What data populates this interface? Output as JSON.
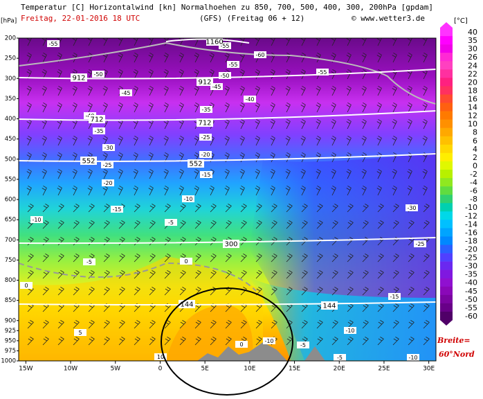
{
  "chart_data": {
    "type": "cross-section",
    "title": "Temperatur [C] Horizontalwind [kn] Normalhoehen zu 850, 700, 500, 400, 300, 200hPa [gpdam]",
    "date": "Freitag, 22-01-2016  18 UTC",
    "model": "(GFS)  (Freitag 06 + 12)",
    "credit": "© www.wetter3.de",
    "y_label": "[hPa]",
    "ylim": [
      1000,
      200
    ],
    "yticks": [
      200,
      250,
      300,
      350,
      400,
      450,
      500,
      550,
      600,
      650,
      700,
      750,
      800,
      850,
      900,
      925,
      950,
      975,
      1000
    ],
    "xlim": [
      -15.8,
      30.8
    ],
    "xticks": [
      {
        "value": -15,
        "label": "15W"
      },
      {
        "value": -10,
        "label": "10W"
      },
      {
        "value": -5,
        "label": "5W"
      },
      0,
      {
        "value": 5,
        "label": "5E"
      },
      {
        "value": 10,
        "label": "10E"
      },
      {
        "value": 15,
        "label": "15E"
      },
      {
        "value": 20,
        "label": "20E"
      },
      {
        "value": 25,
        "label": "25E"
      },
      {
        "value": 30,
        "label": "30E"
      }
    ],
    "colorbar_label": "[°C]",
    "colorbar": {
      "levels": [
        40,
        35,
        30,
        26,
        24,
        22,
        20,
        18,
        16,
        14,
        12,
        10,
        8,
        6,
        4,
        2,
        0,
        -2,
        -4,
        -6,
        -8,
        -10,
        -12,
        -14,
        -16,
        -18,
        -20,
        -25,
        -30,
        -35,
        -40,
        -45,
        -50,
        -55,
        -60
      ],
      "colors": [
        "#ff33ff",
        "#ff00ff",
        "#f000e8",
        "#ff2ad4",
        "#ff40c0",
        "#ff30a0",
        "#ff2080",
        "#ff3060",
        "#ff4a30",
        "#ff6010",
        "#ff7a00",
        "#ff9000",
        "#ffa800",
        "#ffc000",
        "#ffd800",
        "#ffee00",
        "#e0f800",
        "#b8f000",
        "#90e820",
        "#60dc40",
        "#30d070",
        "#00d0b0",
        "#00d8e8",
        "#00c0ff",
        "#00a4ff",
        "#0088ff",
        "#2a60ff",
        "#5040ff",
        "#6a28f0",
        "#8018e0",
        "#9010d0",
        "#8a08b8",
        "#7a04a0",
        "#680088",
        "#500068"
      ]
    },
    "isotherm_labels": [
      -55,
      -55,
      -60,
      -55,
      -50,
      -50,
      -55,
      -45,
      -45,
      -40,
      -40,
      -35,
      -35,
      -30,
      -25,
      -20,
      -25,
      -20,
      -15,
      -10,
      -15,
      -10,
      -5,
      -30,
      -25,
      -5,
      0,
      0,
      -15,
      -10,
      -5,
      5,
      0,
      -10,
      -5,
      -10,
      10
    ],
    "height_labels": [
      1160,
      912,
      912,
      712,
      712,
      552,
      552,
      300,
      144,
      144
    ],
    "annotation": [
      "Breite=",
      "60°Nord"
    ]
  }
}
